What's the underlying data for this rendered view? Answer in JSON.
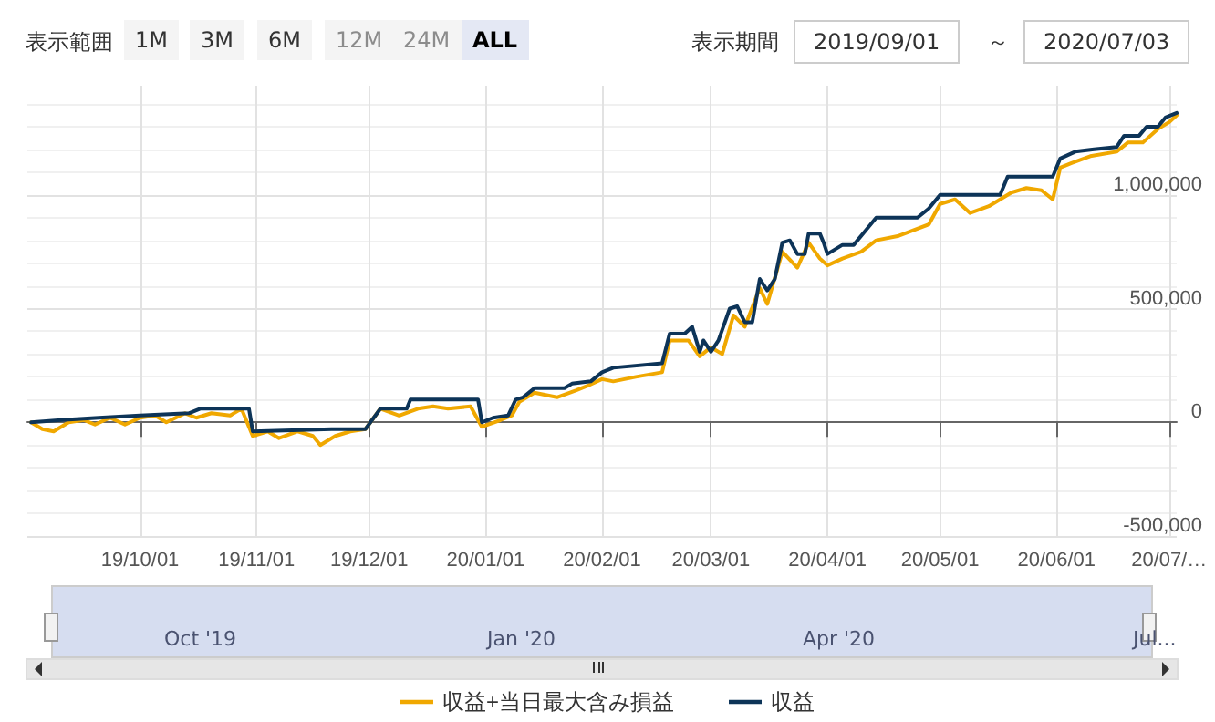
{
  "chart_data": {
    "type": "line",
    "x": [
      "2019-09-02",
      "2019-09-10",
      "2019-09-20",
      "2019-10-01",
      "2019-10-14",
      "2019-10-17",
      "2019-10-30",
      "2019-10-31",
      "2019-11-21",
      "2019-11-30",
      "2019-12-04",
      "2019-12-11",
      "2019-12-12",
      "2019-12-30",
      "2019-12-31",
      "2020-01-03",
      "2020-01-07",
      "2020-01-09",
      "2020-01-11",
      "2020-01-14",
      "2020-01-22",
      "2020-01-24",
      "2020-01-29",
      "2020-02-01",
      "2020-02-04",
      "2020-02-17",
      "2020-02-19",
      "2020-02-23",
      "2020-02-25",
      "2020-02-27",
      "2020-02-28",
      "2020-03-01",
      "2020-03-03",
      "2020-03-06",
      "2020-03-08",
      "2020-03-10",
      "2020-03-12",
      "2020-03-14",
      "2020-03-16",
      "2020-03-18",
      "2020-03-20",
      "2020-03-22",
      "2020-03-24",
      "2020-03-26",
      "2020-03-27",
      "2020-03-30",
      "2020-03-31",
      "2020-04-01",
      "2020-04-03",
      "2020-04-05",
      "2020-04-08",
      "2020-04-11",
      "2020-04-14",
      "2020-04-25",
      "2020-04-28",
      "2020-05-01",
      "2020-05-17",
      "2020-05-19",
      "2020-05-31",
      "2020-06-02",
      "2020-06-06",
      "2020-06-11",
      "2020-06-17",
      "2020-06-19",
      "2020-06-23",
      "2020-06-25",
      "2020-06-28",
      "2020-06-30",
      "2020-07-03"
    ],
    "series": [
      {
        "name": "収益+当日最大含み損益",
        "color": "#f0a800",
        "x": [
          "2019-09-02",
          "2019-09-05",
          "2019-09-08",
          "2019-09-12",
          "2019-09-16",
          "2019-09-19",
          "2019-09-23",
          "2019-09-27",
          "2019-10-01",
          "2019-10-05",
          "2019-10-08",
          "2019-10-13",
          "2019-10-16",
          "2019-10-20",
          "2019-10-25",
          "2019-10-28",
          "2019-10-31",
          "2019-11-04",
          "2019-11-07",
          "2019-11-12",
          "2019-11-16",
          "2019-11-18",
          "2019-11-22",
          "2019-11-26",
          "2019-11-30",
          "2019-12-04",
          "2019-12-09",
          "2019-12-14",
          "2019-12-18",
          "2019-12-22",
          "2019-12-28",
          "2019-12-31",
          "2020-01-05",
          "2020-01-08",
          "2020-01-10",
          "2020-01-14",
          "2020-01-20",
          "2020-01-25",
          "2020-01-28",
          "2020-02-01",
          "2020-02-04",
          "2020-02-10",
          "2020-02-17",
          "2020-02-19",
          "2020-02-24",
          "2020-02-27",
          "2020-03-01",
          "2020-03-04",
          "2020-03-07",
          "2020-03-10",
          "2020-03-14",
          "2020-03-16",
          "2020-03-20",
          "2020-03-24",
          "2020-03-27",
          "2020-03-30",
          "2020-04-01",
          "2020-04-05",
          "2020-04-10",
          "2020-04-14",
          "2020-04-20",
          "2020-04-28",
          "2020-05-01",
          "2020-05-05",
          "2020-05-09",
          "2020-05-14",
          "2020-05-20",
          "2020-05-24",
          "2020-05-28",
          "2020-05-31",
          "2020-06-02",
          "2020-06-05",
          "2020-06-10",
          "2020-06-17",
          "2020-06-20",
          "2020-06-24",
          "2020-06-28",
          "2020-07-01",
          "2020-07-03"
        ],
        "values": [
          0,
          -30000,
          -40000,
          0,
          10000,
          -10000,
          20000,
          -10000,
          20000,
          30000,
          0,
          40000,
          20000,
          40000,
          30000,
          60000,
          -60000,
          -40000,
          -70000,
          -40000,
          -60000,
          -100000,
          -60000,
          -40000,
          -30000,
          60000,
          30000,
          60000,
          70000,
          60000,
          70000,
          -20000,
          10000,
          30000,
          90000,
          130000,
          110000,
          140000,
          160000,
          190000,
          180000,
          200000,
          220000,
          360000,
          360000,
          290000,
          330000,
          300000,
          470000,
          420000,
          590000,
          520000,
          750000,
          680000,
          790000,
          720000,
          690000,
          720000,
          750000,
          800000,
          820000,
          870000,
          960000,
          980000,
          920000,
          950000,
          1010000,
          1030000,
          1020000,
          980000,
          1120000,
          1140000,
          1170000,
          1190000,
          1230000,
          1230000,
          1290000,
          1320000,
          1350000
        ]
      },
      {
        "name": "収益",
        "color": "#0d3458",
        "values": [
          0,
          10000,
          20000,
          30000,
          40000,
          60000,
          60000,
          -40000,
          -30000,
          -30000,
          60000,
          60000,
          100000,
          100000,
          0,
          20000,
          30000,
          100000,
          110000,
          150000,
          150000,
          170000,
          180000,
          220000,
          240000,
          260000,
          390000,
          390000,
          420000,
          310000,
          360000,
          310000,
          360000,
          500000,
          510000,
          440000,
          440000,
          630000,
          580000,
          630000,
          790000,
          800000,
          740000,
          740000,
          830000,
          830000,
          790000,
          740000,
          760000,
          780000,
          780000,
          840000,
          900000,
          900000,
          940000,
          1000000,
          1000000,
          1080000,
          1080000,
          1160000,
          1190000,
          1200000,
          1210000,
          1260000,
          1260000,
          1300000,
          1300000,
          1340000,
          1360000
        ]
      }
    ],
    "xlim": [
      "2019-09-01",
      "2020-07-03"
    ],
    "xticks": [
      {
        "value": "2019-10-01",
        "label": "19/10/01"
      },
      {
        "value": "2019-11-01",
        "label": "19/11/01"
      },
      {
        "value": "2019-12-01",
        "label": "19/12/01"
      },
      {
        "value": "2020-01-01",
        "label": "20/01/01"
      },
      {
        "value": "2020-02-01",
        "label": "20/02/01"
      },
      {
        "value": "2020-03-01",
        "label": "20/03/01"
      },
      {
        "value": "2020-04-01",
        "label": "20/04/01"
      },
      {
        "value": "2020-05-01",
        "label": "20/05/01"
      },
      {
        "value": "2020-06-01",
        "label": "20/06/01"
      },
      {
        "value": "2020-07-01",
        "label": "20/07/…"
      }
    ],
    "ylim": [
      -500000,
      1480000
    ],
    "yticks": [
      {
        "value": -500000,
        "label": "-500,000"
      },
      0,
      {
        "value": 500000,
        "label": "500,000"
      },
      {
        "value": 1000000,
        "label": "1,000,000"
      }
    ],
    "grid": true,
    "legend": "bottom",
    "marker": "none",
    "line_style": "solid",
    "annotations": [
      "表示範囲",
      "1M",
      "3M",
      "6M",
      "12M",
      "24M",
      "ALL",
      "表示期間",
      "2019/09/01",
      "～",
      "2020/07/03",
      "Oct '19",
      "Jan '20",
      "Apr '20",
      "Jul..."
    ]
  }
}
